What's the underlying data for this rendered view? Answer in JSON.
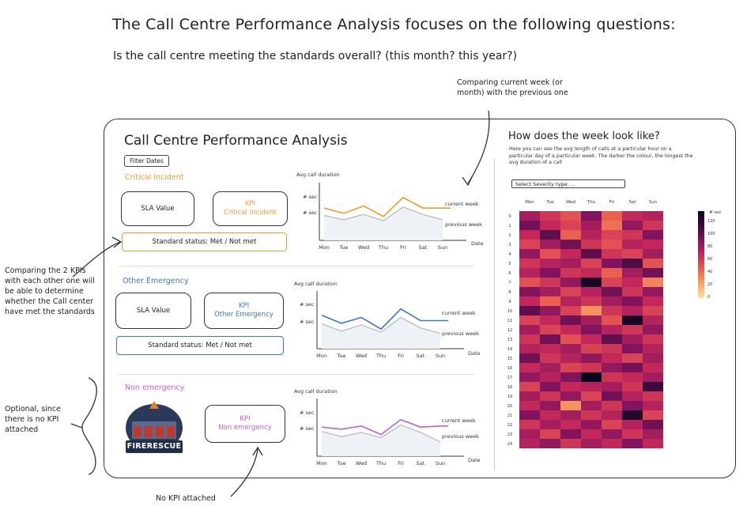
{
  "intro": {
    "heading": "The Call Centre Performance Analysis focuses on the following questions:",
    "question": "Is the call centre meeting the standards overall? (this month? this year?)"
  },
  "notes": {
    "compare_week": "Comparing current week (or month) with the previous one",
    "compare_kpis": "Comparing the 2 KPIs with each other one will be able to determine whether the Call center have met the standards",
    "optional": "Optional, since there is no KPI attached",
    "no_kpi": "No KPI attached"
  },
  "dashboard": {
    "title": "Call Centre Performance Analysis",
    "filter_button": "Filter Dates",
    "sections": [
      {
        "title": "Critical Incident",
        "color": "#e0a030",
        "box1": "SLA Value",
        "kpi_line1": "KPI",
        "kpi_line2": "Critical Incident",
        "status": "Standard status: Met / Not met",
        "chart_label": "Avg call duration",
        "y_labels": [
          "# sec",
          "# sec"
        ],
        "current_label": "current week",
        "previous_label": "previous week",
        "x_axis_label": "Date"
      },
      {
        "title": "Other Emergency",
        "color": "#3a78c9",
        "box1": "SLA Value",
        "kpi_line1": "KPI",
        "kpi_line2": "Other Emergency",
        "status": "Standard status: Met / Not met",
        "chart_label": "Avg call duration",
        "y_labels": [
          "# sec",
          "# sec"
        ],
        "current_label": "current week",
        "previous_label": "previous week",
        "x_axis_label": "Date"
      },
      {
        "title": "Non emergency",
        "color": "#c060d8",
        "logo_text": "FIRERESCUE",
        "kpi_line1": "KPI",
        "kpi_line2": "Non emergency",
        "chart_label": "Avg call duration",
        "y_labels": [
          "# sec",
          "# sec"
        ],
        "current_label": "current week",
        "previous_label": "previous week",
        "x_axis_label": "Date"
      }
    ],
    "days": [
      "Mon",
      "Tue",
      "Wed",
      "Thu",
      "Fri",
      "Sat",
      "Sun"
    ],
    "heatmap": {
      "title": "How does the week look like?",
      "description": "Here you can see the avg length of calls at a particular hour on a particular day of a particular week. The darker the colour, the longest the avg duration of a call",
      "select_label": "Select Severity type: ...",
      "days": [
        "Mon",
        "Tue",
        "Wed",
        "Thu",
        "Fri",
        "Sat",
        "Sun"
      ],
      "legend_title": "# sec",
      "legend_ticks": [
        "120",
        "100",
        "80",
        "60",
        "40",
        "20",
        "0"
      ]
    }
  },
  "chart_data": [
    {
      "type": "line",
      "title": "Avg call duration",
      "categories": [
        "Mon",
        "Tue",
        "Wed",
        "Thu",
        "Fri",
        "Sat",
        "Sun"
      ],
      "series": [
        {
          "name": "current week",
          "values": [
            58,
            48,
            62,
            42,
            78,
            58,
            58
          ]
        },
        {
          "name": "previous week",
          "values": [
            44,
            36,
            46,
            34,
            60,
            46,
            36
          ]
        }
      ],
      "ylim": [
        0,
        100
      ],
      "xlabel": "Date"
    },
    {
      "type": "line",
      "title": "Avg call duration",
      "categories": [
        "Mon",
        "Tue",
        "Wed",
        "Thu",
        "Fri",
        "Sat",
        "Sun"
      ],
      "series": [
        {
          "name": "current week",
          "values": [
            60,
            45,
            56,
            34,
            72,
            50,
            50
          ]
        },
        {
          "name": "previous week",
          "values": [
            44,
            30,
            42,
            28,
            56,
            36,
            26
          ]
        }
      ],
      "ylim": [
        0,
        100
      ],
      "xlabel": "Date"
    },
    {
      "type": "line",
      "title": "Avg call duration",
      "categories": [
        "Mon",
        "Tue",
        "Wed",
        "Thu",
        "Fri",
        "Sat",
        "Sun"
      ],
      "series": [
        {
          "name": "current week",
          "values": [
            52,
            48,
            54,
            38,
            66,
            52,
            54
          ]
        },
        {
          "name": "previous week",
          "values": [
            44,
            34,
            42,
            32,
            56,
            42,
            24
          ]
        }
      ],
      "ylim": [
        0,
        100
      ],
      "xlabel": "Date"
    },
    {
      "type": "heatmap",
      "title": "How does the week look like?",
      "x": [
        "Mon",
        "Tue",
        "Wed",
        "Thu",
        "Fri",
        "Sat",
        "Sun"
      ],
      "y": [
        "0",
        "1",
        "2",
        "3",
        "4",
        "5",
        "6",
        "7",
        "8",
        "9",
        "10",
        "11",
        "12",
        "13",
        "14",
        "15",
        "16",
        "17",
        "18",
        "19",
        "20",
        "21",
        "22",
        "23",
        "24"
      ],
      "values": [
        [
          70,
          55,
          45,
          80,
          40,
          60,
          65
        ],
        [
          85,
          60,
          50,
          70,
          35,
          75,
          55
        ],
        [
          60,
          90,
          40,
          65,
          50,
          55,
          80
        ],
        [
          50,
          70,
          85,
          55,
          45,
          65,
          60
        ],
        [
          75,
          45,
          60,
          90,
          55,
          50,
          70
        ],
        [
          55,
          65,
          70,
          50,
          80,
          95,
          45
        ],
        [
          65,
          80,
          55,
          60,
          40,
          70,
          85
        ],
        [
          45,
          55,
          75,
          115,
          50,
          60,
          30
        ],
        [
          80,
          70,
          50,
          65,
          85,
          55,
          75
        ],
        [
          60,
          40,
          65,
          55,
          70,
          80,
          60
        ],
        [
          90,
          75,
          50,
          25,
          55,
          65,
          50
        ],
        [
          50,
          60,
          85,
          70,
          45,
          115,
          65
        ],
        [
          70,
          50,
          60,
          80,
          65,
          55,
          75
        ],
        [
          55,
          85,
          45,
          60,
          90,
          70,
          55
        ],
        [
          65,
          60,
          70,
          50,
          55,
          80,
          65
        ],
        [
          85,
          55,
          65,
          75,
          60,
          50,
          70
        ],
        [
          60,
          70,
          50,
          55,
          75,
          85,
          60
        ],
        [
          75,
          65,
          80,
          120,
          55,
          60,
          70
        ],
        [
          50,
          80,
          60,
          65,
          70,
          55,
          100
        ],
        [
          70,
          55,
          75,
          50,
          85,
          65,
          55
        ],
        [
          60,
          75,
          25,
          70,
          55,
          80,
          65
        ],
        [
          80,
          60,
          70,
          55,
          65,
          110,
          50
        ],
        [
          55,
          70,
          60,
          75,
          50,
          65,
          85
        ],
        [
          70,
          50,
          80,
          60,
          75,
          55,
          70
        ],
        [
          65,
          75,
          55,
          70,
          60,
          80,
          60
        ]
      ],
      "colorbar_label": "# sec",
      "colorbar_range": [
        0,
        120
      ]
    }
  ]
}
